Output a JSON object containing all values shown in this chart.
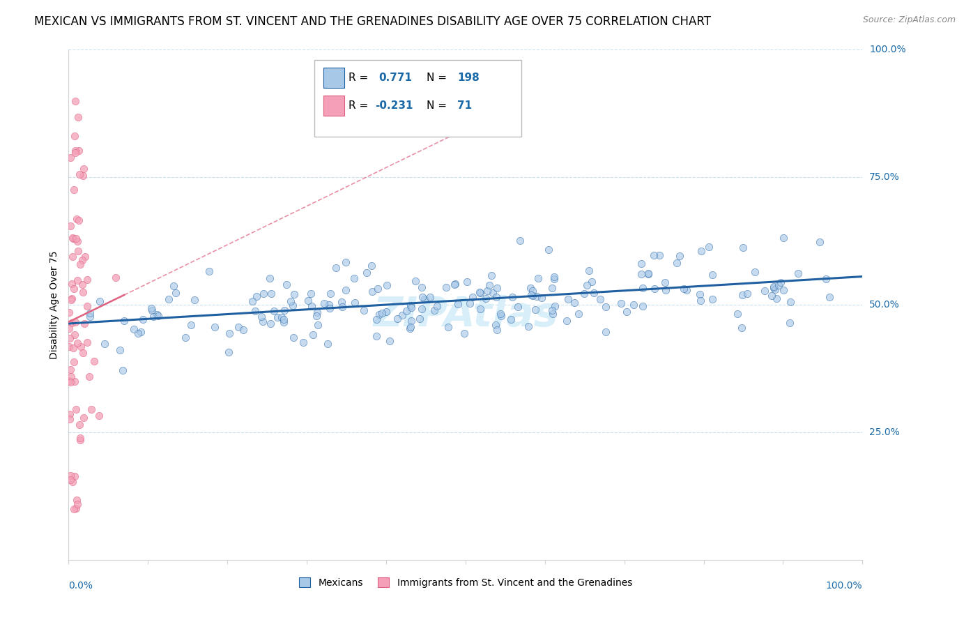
{
  "title": "MEXICAN VS IMMIGRANTS FROM ST. VINCENT AND THE GRENADINES DISABILITY AGE OVER 75 CORRELATION CHART",
  "source": "Source: ZipAtlas.com",
  "ylabel": "Disability Age Over 75",
  "legend_mexicans": "Mexicans",
  "legend_svg": "Immigrants from St. Vincent and the Grenadines",
  "R_mexican": 0.771,
  "N_mexican": 198,
  "R_svg": -0.231,
  "N_svg": 71,
  "blue_color": "#a8c8e8",
  "blue_line_color": "#2060a0",
  "pink_color": "#f4a0b8",
  "pink_line_color": "#e06080",
  "blue_dark": "#1a6aaa",
  "background": "#ffffff",
  "xlim": [
    0,
    1
  ],
  "ylim": [
    0,
    1
  ],
  "title_fontsize": 12,
  "axis_label_fontsize": 10,
  "watermark_color": "#d8eef8",
  "grid_color": "#c8dff0",
  "yticks": [
    0.25,
    0.5,
    0.75,
    1.0
  ],
  "ytick_labels": [
    "25.0%",
    "50.0%",
    "75.0%",
    "100.0%"
  ]
}
